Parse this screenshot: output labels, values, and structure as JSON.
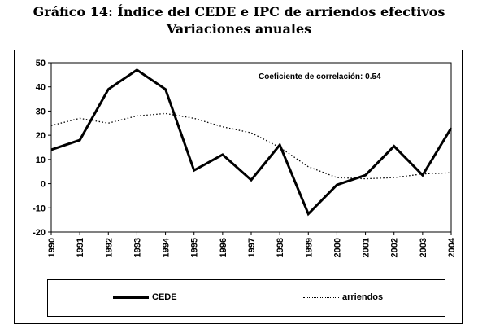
{
  "header": {
    "title_line1": "Gráfico 14: Índice del CEDE e IPC de arriendos efectivos",
    "title_line2": "Variaciones anuales"
  },
  "annotation": "Coeficiente de correlación: 0.54",
  "legend": {
    "cede_label": "CEDE",
    "arriendos_label": "arriendos"
  },
  "chart_data": {
    "type": "line",
    "title": "Gráfico 14: Índice del CEDE e IPC de arriendos efectivos / Variaciones anuales",
    "categories": [
      "1990",
      "1991",
      "1992",
      "1993",
      "1994",
      "1995",
      "1996",
      "1997",
      "1998",
      "1999",
      "2000",
      "2001",
      "2002",
      "2003",
      "2004"
    ],
    "ylim": [
      -20,
      50
    ],
    "yticks": [
      -20,
      -10,
      0,
      10,
      20,
      30,
      40,
      50
    ],
    "grid": false,
    "legend_position": "bottom",
    "series": [
      {
        "name": "CEDE",
        "style": "solid",
        "color": "#000000",
        "values": [
          14,
          18,
          39,
          47,
          39,
          5.5,
          12,
          1.5,
          16,
          -12.5,
          -0.5,
          3.5,
          15.5,
          3.5,
          23
        ]
      },
      {
        "name": "arriendos",
        "style": "dotted",
        "color": "#000000",
        "values": [
          24,
          27,
          25,
          28,
          29,
          27,
          23.5,
          21,
          15,
          7,
          2.5,
          2,
          2.5,
          4,
          4.5
        ]
      }
    ]
  }
}
